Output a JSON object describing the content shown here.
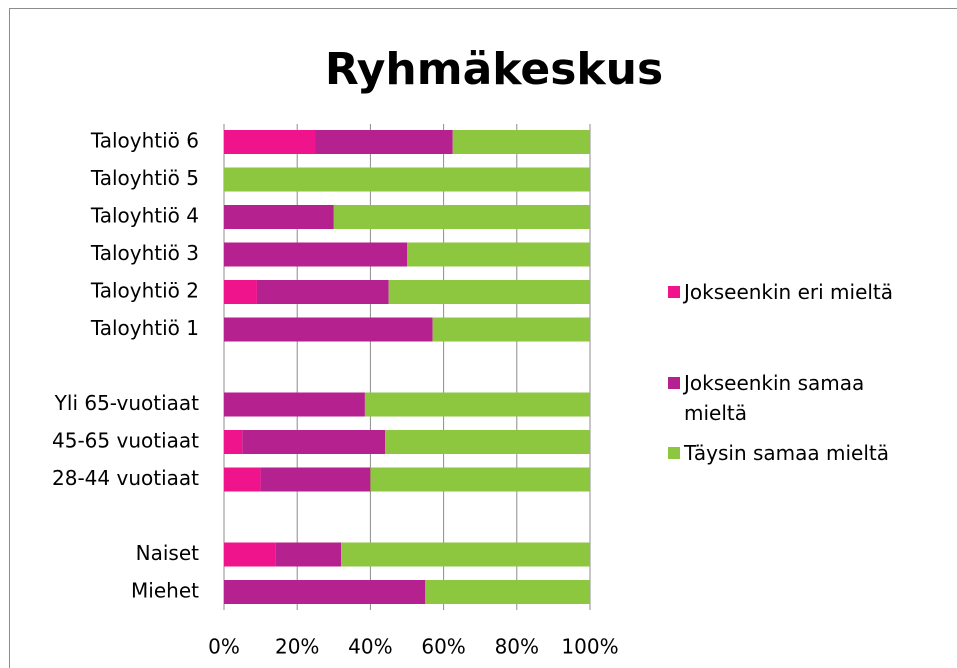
{
  "chart_data": {
    "type": "stacked_bar_horizontal",
    "title": "Ryhmäkeskus",
    "categories": [
      "Taloyhtiö 6",
      "Taloyhtiö 5",
      "Taloyhtiö 4",
      "Taloyhtiö 3",
      "Taloyhtiö 2",
      "Taloyhtiö 1",
      null,
      "Yli 65-vuotiaat",
      "45-65 vuotiaat",
      "28-44 vuotiaat",
      null,
      "Naiset",
      "Miehet"
    ],
    "series": [
      {
        "name": "Jokseenkin eri mieltä",
        "color": "#f0148c",
        "values": [
          25,
          0,
          0,
          0,
          9,
          0,
          null,
          0,
          5,
          10,
          null,
          14,
          0
        ]
      },
      {
        "name": "Jokseenkin samaa mieltä",
        "color": "#b5218e",
        "values": [
          37.5,
          0,
          30,
          50,
          36,
          57,
          null,
          38.5,
          39,
          30,
          null,
          18,
          55
        ]
      },
      {
        "name": "Täysin samaa mieltä",
        "color": "#8dc63f",
        "values": [
          37.5,
          100,
          70,
          50,
          55,
          43,
          null,
          61.5,
          56,
          60,
          null,
          68,
          45
        ]
      }
    ],
    "xlim": [
      0,
      100
    ],
    "xticks": [
      {
        "value": 0,
        "label": "0%"
      },
      {
        "value": 20,
        "label": "20%"
      },
      {
        "value": 40,
        "label": "40%"
      },
      {
        "value": 60,
        "label": "60%"
      },
      {
        "value": 80,
        "label": "80%"
      },
      {
        "value": 100,
        "label": "100%"
      }
    ],
    "grid": true,
    "legend": "right"
  }
}
